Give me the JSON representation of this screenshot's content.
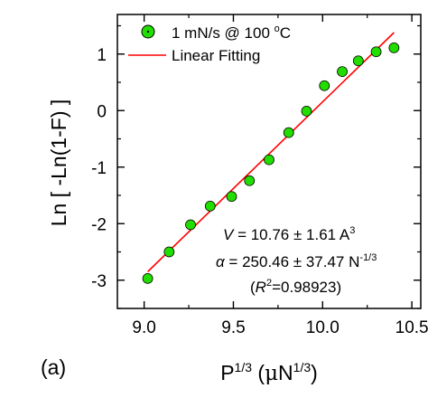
{
  "chart_data": {
    "type": "scatter",
    "panel_label": "(a)",
    "xlabel": {
      "base": "P",
      "sup": "1/3",
      "unit_open": " (",
      "unit_mu": "μ",
      "unit_n": "N",
      "unit_sup": "1/3",
      "unit_close": ")"
    },
    "ylabel": "Ln [ -Ln(1-F) ]",
    "xlim": [
      8.85,
      10.55
    ],
    "ylim": [
      -3.5,
      1.7
    ],
    "xticks": [
      9.0,
      9.5,
      10.0,
      10.5
    ],
    "xtick_labels": [
      "9.0",
      "9.5",
      "10.0",
      "10.5"
    ],
    "yticks": [
      -3,
      -2,
      -1,
      0,
      1
    ],
    "ytick_labels": [
      "-3",
      "-2",
      "-1",
      "0",
      "1"
    ],
    "series": [
      {
        "name": "1 mN/s @ 100 °C",
        "legend_parts": {
          "text": "1 mN/s @ 100 ",
          "sup": "o",
          "unit": "C"
        },
        "marker": "circle",
        "color": "#22dd00",
        "x": [
          9.02,
          9.14,
          9.26,
          9.37,
          9.49,
          9.59,
          9.7,
          9.81,
          9.91,
          10.01,
          10.11,
          10.2,
          10.3,
          10.4
        ],
        "y": [
          -2.97,
          -2.5,
          -2.02,
          -1.69,
          -1.52,
          -1.24,
          -0.87,
          -0.39,
          -0.01,
          0.44,
          0.69,
          0.88,
          1.04,
          1.11
        ]
      },
      {
        "name": "Linear Fitting",
        "type": "line",
        "color": "#ff0000",
        "x": [
          9.02,
          10.4
        ],
        "y": [
          -2.85,
          1.38
        ]
      }
    ],
    "legend": "top-left",
    "grid": false,
    "annotations": {
      "v_line": {
        "var": "V",
        "value": " = 10.76 ± 1.61 A",
        "sup": "3"
      },
      "alpha_line": {
        "var": "α",
        "value": " = 250.46 ± 37.47 N",
        "sup": "-1/3"
      },
      "r2_line": {
        "open": "(",
        "var": "R",
        "sup": "2",
        "value": "=0.98923)"
      }
    }
  }
}
